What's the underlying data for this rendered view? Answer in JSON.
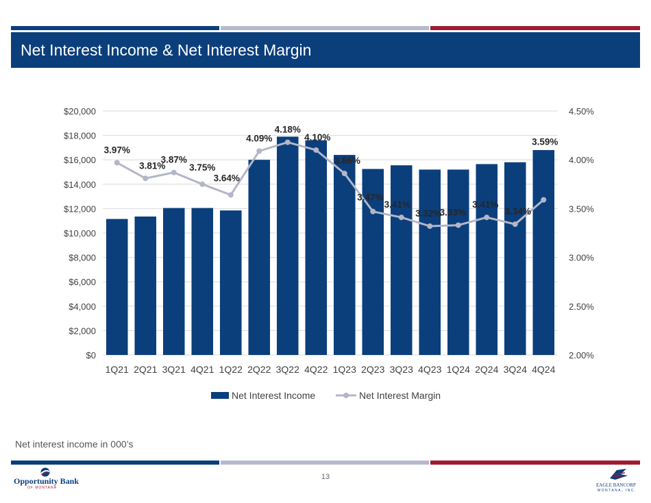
{
  "header": {
    "title": "Net Interest Income & Net Interest Margin"
  },
  "footer": {
    "note": "Net interest income in 000’s",
    "page_number": "13",
    "left_logo": {
      "name": "Opportunity Bank",
      "sub": "OF MONTANA"
    },
    "right_logo": {
      "name": "EAGLE BANCORP",
      "sub": "MONTANA, INC."
    }
  },
  "colors": {
    "navy": "#0b3f7c",
    "gray": "#b7b9cc",
    "red": "#9e1b32",
    "line": "#b4b6c8"
  },
  "chart_data": {
    "type": "bar",
    "title": "",
    "categories": [
      "1Q21",
      "2Q21",
      "3Q21",
      "4Q21",
      "1Q22",
      "2Q22",
      "3Q22",
      "4Q22",
      "1Q23",
      "2Q23",
      "3Q23",
      "4Q23",
      "1Q24",
      "2Q24",
      "3Q24",
      "4Q24"
    ],
    "series": [
      {
        "name": "Net Interest Income",
        "type": "bar",
        "axis": "left",
        "values": [
          11150,
          11350,
          12050,
          12050,
          11850,
          16000,
          17900,
          17600,
          16400,
          15250,
          15550,
          15200,
          15200,
          15650,
          15800,
          16800
        ]
      },
      {
        "name": "Net Interest Margin",
        "type": "line",
        "axis": "right",
        "values": [
          3.97,
          3.81,
          3.87,
          3.75,
          3.64,
          4.09,
          4.18,
          4.1,
          3.86,
          3.47,
          3.41,
          3.32,
          3.33,
          3.41,
          3.34,
          3.59
        ],
        "labels": [
          "3.97%",
          "3.81%",
          "3.87%",
          "3.75%",
          "3.64%",
          "4.09%",
          "4.18%",
          "4.10%",
          "3.86%",
          "3.47%",
          "3.41%",
          "3.32%",
          "3.33%",
          "3.41%",
          "3.34%",
          "3.59%"
        ]
      }
    ],
    "y_left": {
      "ylim": [
        0,
        20000
      ],
      "ticks": [
        0,
        2000,
        4000,
        6000,
        8000,
        10000,
        12000,
        14000,
        16000,
        18000,
        20000
      ],
      "tick_labels": [
        "$0",
        "$2,000",
        "$4,000",
        "$6,000",
        "$8,000",
        "$10,000",
        "$12,000",
        "$14,000",
        "$16,000",
        "$18,000",
        "$20,000"
      ]
    },
    "y_right": {
      "ylim": [
        2.0,
        4.5
      ],
      "ticks": [
        2.0,
        2.5,
        3.0,
        3.5,
        4.0,
        4.5
      ],
      "tick_labels": [
        "2.00%",
        "2.50%",
        "3.00%",
        "3.50%",
        "4.00%",
        "4.50%"
      ]
    },
    "grid": true,
    "legend": "bottom"
  }
}
